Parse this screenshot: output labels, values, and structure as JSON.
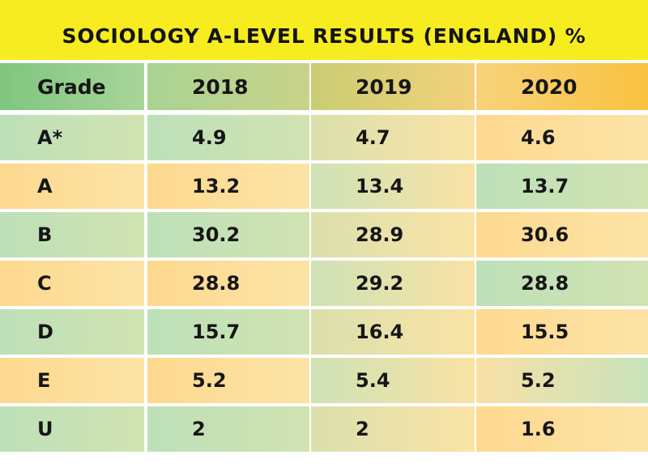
{
  "title": "SOCIOLOGY A-LEVEL RESULTS (ENGLAND) %",
  "chart_data": {
    "type": "table",
    "title": "SOCIOLOGY A-LEVEL RESULTS (ENGLAND) %",
    "columns": [
      "Grade",
      "2018",
      "2019",
      "2020"
    ],
    "rows": [
      [
        "A*",
        "4.9",
        "4.7",
        "4.6"
      ],
      [
        "A",
        "13.2",
        "13.4",
        "13.7"
      ],
      [
        "B",
        "30.2",
        "28.9",
        "30.6"
      ],
      [
        "C",
        "28.8",
        "29.2",
        "28.8"
      ],
      [
        "D",
        "15.7",
        "16.4",
        "15.5"
      ],
      [
        "E",
        "5.2",
        "5.4",
        "5.2"
      ],
      [
        "U",
        "2",
        "2",
        "1.6"
      ]
    ]
  },
  "colors": {
    "title_background": "#f7ec20",
    "green": "#bde0b8",
    "orange": "#fdd98f",
    "text": "#141414"
  }
}
